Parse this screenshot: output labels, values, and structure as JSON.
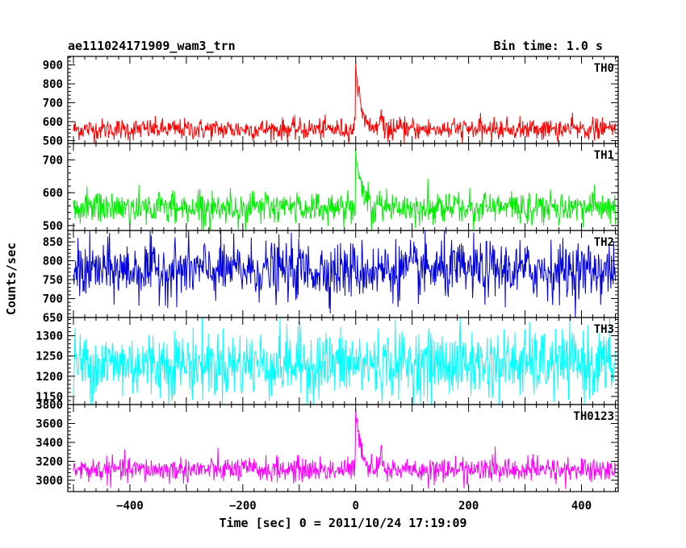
{
  "chart_data": {
    "type": "line",
    "title_left": "ae111024171909_wam3_trn",
    "title_right": "Bin time: 1.0 s",
    "xlabel": "Time [sec] 0 = 2011/10/24 17:19:09",
    "ylabel": "Counts/sec",
    "xlim": [
      -510,
      465
    ],
    "x_data_range": [
      -500,
      460
    ],
    "x_ticks": [
      -400,
      -200,
      0,
      200,
      400
    ],
    "x_tick_labels": [
      "−400",
      "−200",
      "0",
      "200",
      "400"
    ],
    "panels": [
      {
        "name": "TH0",
        "color": "#ff0000",
        "ylim": [
          485,
          945
        ],
        "y_ticks": [
          500,
          600,
          700,
          800,
          900
        ],
        "y_tick_labels": [
          "500",
          "600",
          "700",
          "800",
          "900"
        ],
        "baseline": 560,
        "noise": 28,
        "burst": {
          "t0": 0,
          "peak": 950,
          "decay": 8,
          "secondary_t": 45,
          "secondary_peak": 680
        }
      },
      {
        "name": "TH1",
        "color": "#00ee00",
        "ylim": [
          485,
          750
        ],
        "y_ticks": [
          500,
          600,
          700
        ],
        "y_tick_labels": [
          "500",
          "600",
          "700"
        ],
        "baseline": 555,
        "noise": 25,
        "burst": {
          "t0": 0,
          "peak": 745,
          "decay": 10,
          "secondary_t": 40,
          "secondary_peak": 610
        }
      },
      {
        "name": "TH2",
        "color": "#0000dd",
        "ylim": [
          650,
          880
        ],
        "y_ticks": [
          650,
          700,
          750,
          800,
          850
        ],
        "y_tick_labels": [
          "650",
          "700",
          "750",
          "800",
          "850"
        ],
        "baseline": 775,
        "noise": 38,
        "burst": null
      },
      {
        "name": "TH3",
        "color": "#00ffff",
        "ylim": [
          1130,
          1345
        ],
        "y_ticks": [
          1150,
          1200,
          1250,
          1300
        ],
        "y_tick_labels": [
          "1150",
          "1200",
          "1250",
          "1300"
        ],
        "baseline": 1230,
        "noise": 42,
        "burst": null
      },
      {
        "name": "TH0123",
        "color": "#ff00ff",
        "ylim": [
          2880,
          3800
        ],
        "y_ticks": [
          3000,
          3200,
          3400,
          3600,
          3800
        ],
        "y_tick_labels": [
          "3000",
          "3200",
          "3400",
          "3600",
          "3800"
        ],
        "baseline": 3110,
        "noise": 65,
        "burst": {
          "t0": 0,
          "peak": 3800,
          "decay": 9,
          "secondary_t": 45,
          "secondary_peak": 3450
        }
      }
    ],
    "grid": false,
    "legend": "none"
  }
}
